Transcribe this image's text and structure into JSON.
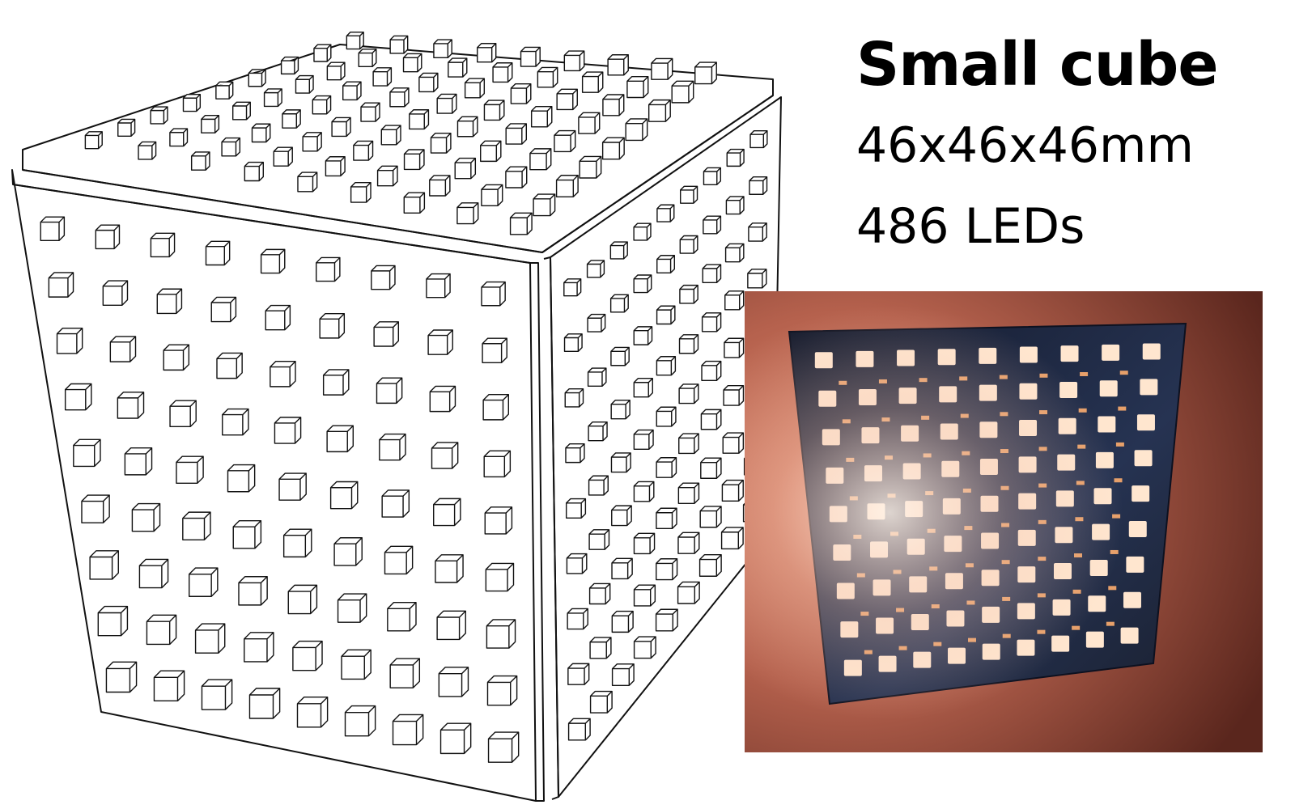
{
  "caption": {
    "title": "Small cube",
    "dimensions": "46x46x46mm",
    "led_count": "486 LEDs"
  },
  "illustration": {
    "subject": "wireframe cube with LED grid on each face",
    "grid_per_face": 9,
    "line_color": "#111111"
  },
  "photo": {
    "subject": "lit LED circuit board panel",
    "board_color": "#1b2236",
    "glow_color": "#c86a4a",
    "led_color": "#ffe6cf"
  }
}
